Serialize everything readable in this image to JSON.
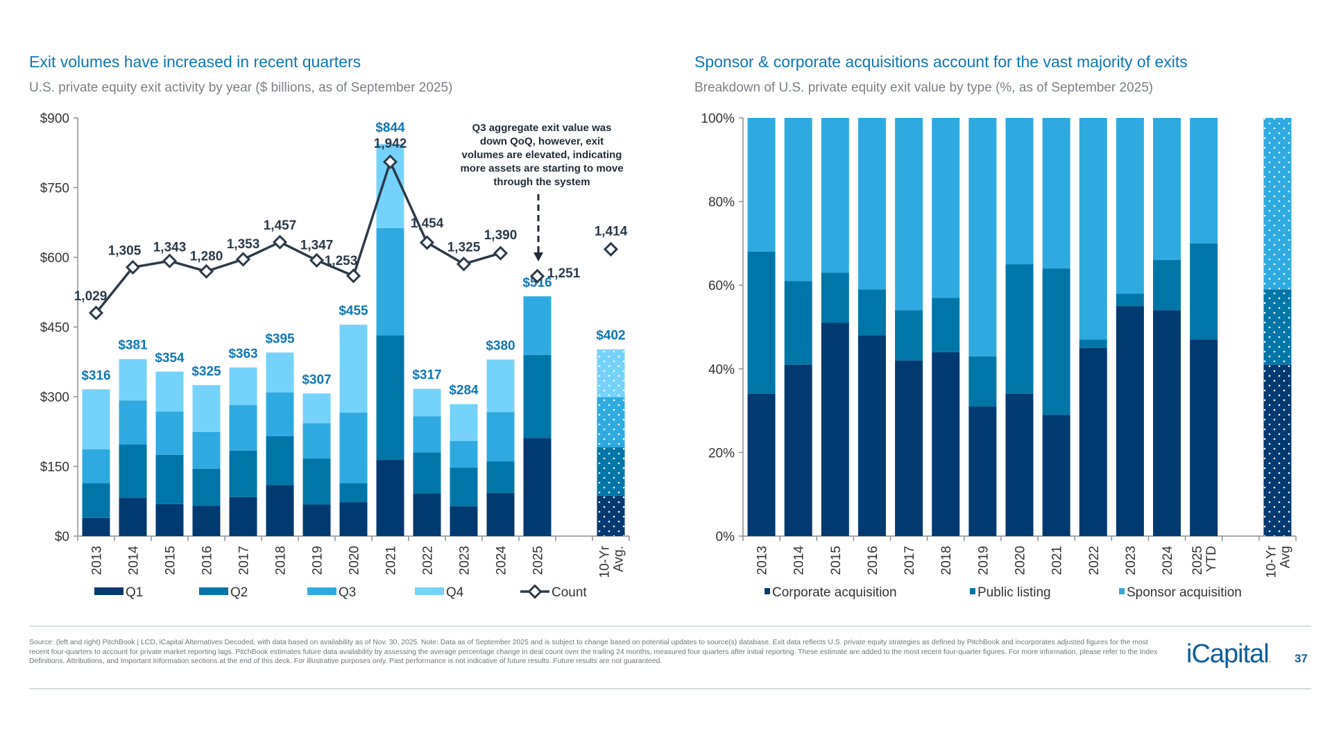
{
  "left": {
    "title": "Exit volumes have increased in recent quarters",
    "subtitle": "U.S. private equity exit activity by year ($ billions, as of September 2025)",
    "annotation": [
      "Q3 aggregate exit value was",
      "down QoQ, however, exit",
      "volumes are elevated, indicating",
      "more assets are starting to move",
      "through the system"
    ]
  },
  "right": {
    "title": "Sponsor & corporate acquisitions account for the vast majority of exits",
    "subtitle": "Breakdown of U.S. private equity exit value by type (%, as of September 2025)"
  },
  "footer": {
    "source": "Source: (left and right) PitchBook | LCD, iCapital Alternatives Decoded, with data based on availability as of Nov. 30, 2025. Note: Data as of September 2025 and is subject to change based on potential updates to source(s) database. Exit data reflects U.S. private equity strategies as defined by PitchBook and incorporates adjusted figures for the most recent four-quarters to account for private market reporting lags. PitchBook estimates future data availability by assessing the average percentage change in deal count over the trailing 24 months, measured four quarters after initial reporting. These estimate are added to the most recent four-quarter figures. For more information, please refer to the Index Definitions, Attributions, and Important Information sections at the end of this deck. For illustrative purposes only. Past performance is not indicative of future results. Future results are not guaranteed.",
    "logo": "iCapital",
    "page_number": "37"
  },
  "chart_data": [
    {
      "type": "bar",
      "stacked": true,
      "categories": [
        "2013",
        "2014",
        "2015",
        "2016",
        "2017",
        "2018",
        "2019",
        "2020",
        "2021",
        "2022",
        "2023",
        "2024",
        "2025",
        "",
        "10-Yr Avg."
      ],
      "ylim": [
        0,
        900
      ],
      "yticks": [
        "$0",
        "$150",
        "$300",
        "$450",
        "$600",
        "$750",
        "$900"
      ],
      "ytick_values": [
        0,
        150,
        300,
        450,
        600,
        750,
        900
      ],
      "grid": false,
      "legend_placement": "bottom",
      "series": [
        {
          "name": "Q1",
          "color": "#003a70",
          "values": [
            39,
            82,
            69,
            65,
            84,
            110,
            68,
            73,
            164,
            92,
            64,
            93,
            211,
            null,
            87
          ]
        },
        {
          "name": "Q2",
          "color": "#0076a8",
          "values": [
            75,
            115,
            106,
            80,
            100,
            105,
            99,
            41,
            268,
            88,
            83,
            68,
            179,
            null,
            104
          ]
        },
        {
          "name": "Q3",
          "color": "#2eaae1",
          "values": [
            73,
            95,
            93,
            79,
            98,
            94,
            76,
            152,
            231,
            78,
            58,
            106,
            126,
            null,
            108
          ]
        },
        {
          "name": "Q4",
          "color": "#75d3fb",
          "values": [
            129,
            89,
            86,
            101,
            81,
            86,
            64,
            189,
            181,
            59,
            79,
            113,
            null,
            null,
            103
          ]
        }
      ],
      "totals": [
        "$316",
        "$381",
        "$354",
        "$325",
        "$363",
        "$395",
        "$307",
        "$455",
        "$844",
        "$317",
        "$284",
        "$380",
        "$516",
        "",
        "$402"
      ],
      "total_values": [
        316,
        381,
        354,
        325,
        363,
        395,
        307,
        455,
        844,
        317,
        284,
        380,
        516,
        null,
        402
      ],
      "line_series": {
        "name": "Count",
        "color": "#2b3a4a",
        "values": [
          1029,
          1305,
          1343,
          1280,
          1353,
          1457,
          1347,
          1253,
          1942,
          1454,
          1325,
          1390,
          1251,
          null,
          1414
        ],
        "labels": [
          "1,029",
          "1,305",
          "1,343",
          "1,280",
          "1,353",
          "1,457",
          "1,347",
          "1,253",
          "1,942",
          "1,454",
          "1,325",
          "1,390",
          "1,251",
          "",
          "1,414"
        ]
      },
      "hatched_category": "10-Yr Avg."
    },
    {
      "type": "bar",
      "stacked": true,
      "percent": true,
      "categories": [
        "2013",
        "2014",
        "2015",
        "2016",
        "2017",
        "2018",
        "2019",
        "2020",
        "2021",
        "2022",
        "2023",
        "2024",
        "2025 YTD",
        "",
        "10-Yr Avg"
      ],
      "ylim": [
        0,
        100
      ],
      "yticks": [
        "0%",
        "20%",
        "40%",
        "60%",
        "80%",
        "100%"
      ],
      "ytick_values": [
        0,
        20,
        40,
        60,
        80,
        100
      ],
      "grid": false,
      "legend_placement": "bottom",
      "series": [
        {
          "name": "Corporate acquisition",
          "color": "#003a70",
          "values": [
            34,
            41,
            51,
            48,
            42,
            44,
            31,
            34,
            29,
            45,
            55,
            54,
            47,
            null,
            41
          ]
        },
        {
          "name": "Public listing",
          "color": "#0076a8",
          "values": [
            34,
            20,
            12,
            11,
            12,
            13,
            12,
            31,
            35,
            2,
            3,
            12,
            23,
            null,
            18
          ]
        },
        {
          "name": "Sponsor acquisition",
          "color": "#2eaae1",
          "values": [
            32,
            39,
            37,
            41,
            46,
            43,
            57,
            35,
            36,
            53,
            42,
            34,
            30,
            null,
            41
          ]
        }
      ],
      "hatched_category": "10-Yr Avg"
    }
  ]
}
